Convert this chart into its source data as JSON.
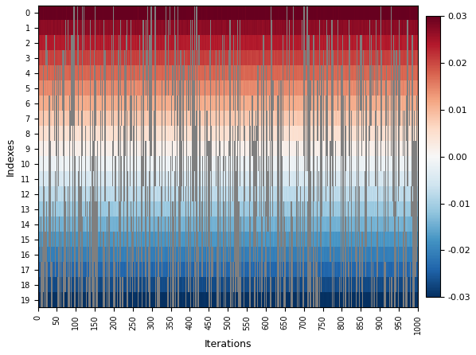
{
  "n_rows": 20,
  "n_cols": 1000,
  "vmin": -0.03,
  "vmax": 0.03,
  "cmap": "RdBu_r",
  "xlabel": "Iterations",
  "ylabel": "Indexes",
  "ytick_labels": [
    "0",
    "1",
    "2",
    "3",
    "4",
    "5",
    "6",
    "7",
    "8",
    "9",
    "10",
    "11",
    "12",
    "13",
    "14",
    "15",
    "16",
    "17",
    "18",
    "19"
  ],
  "xtick_positions": [
    0,
    50,
    100,
    150,
    200,
    250,
    300,
    350,
    400,
    450,
    500,
    550,
    600,
    650,
    700,
    750,
    800,
    850,
    900,
    950,
    1000
  ],
  "colorbar_ticks": [
    0.03,
    0.02,
    0.01,
    0.0,
    -0.01,
    -0.02,
    -0.03
  ],
  "gray_color": [
    0.5,
    0.5,
    0.5,
    1.0
  ],
  "seed": 42,
  "figsize": [
    5.98,
    4.46
  ],
  "dpi": 100
}
